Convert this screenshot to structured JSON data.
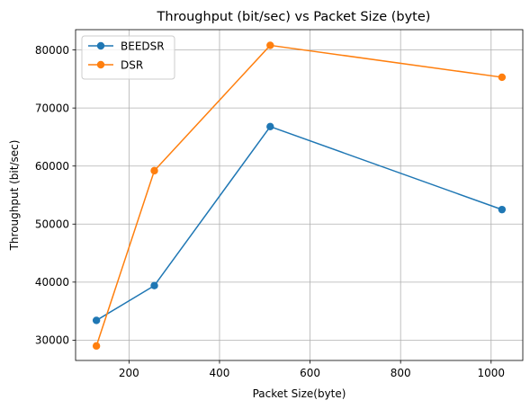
{
  "chart_data": {
    "type": "line",
    "title": "Throughput (bit/sec) vs Packet Size (byte)",
    "xlabel": "Packet Size(byte)",
    "ylabel": "Throughput (bit/sec)",
    "xlim": [
      82,
      1070
    ],
    "ylim": [
      26500,
      83500
    ],
    "xticks": [
      200,
      400,
      600,
      800,
      1000
    ],
    "yticks": [
      30000,
      40000,
      50000,
      60000,
      70000,
      80000
    ],
    "grid": true,
    "legend_position": "top-left",
    "series": [
      {
        "name": "BEEDSR",
        "color": "#1f77b4",
        "x": [
          128,
          256,
          512,
          1024
        ],
        "y": [
          33400,
          39400,
          66800,
          52500
        ]
      },
      {
        "name": "DSR",
        "color": "#ff7f0e",
        "x": [
          128,
          256,
          512,
          1024
        ],
        "y": [
          29000,
          59200,
          80800,
          75300
        ]
      }
    ]
  }
}
